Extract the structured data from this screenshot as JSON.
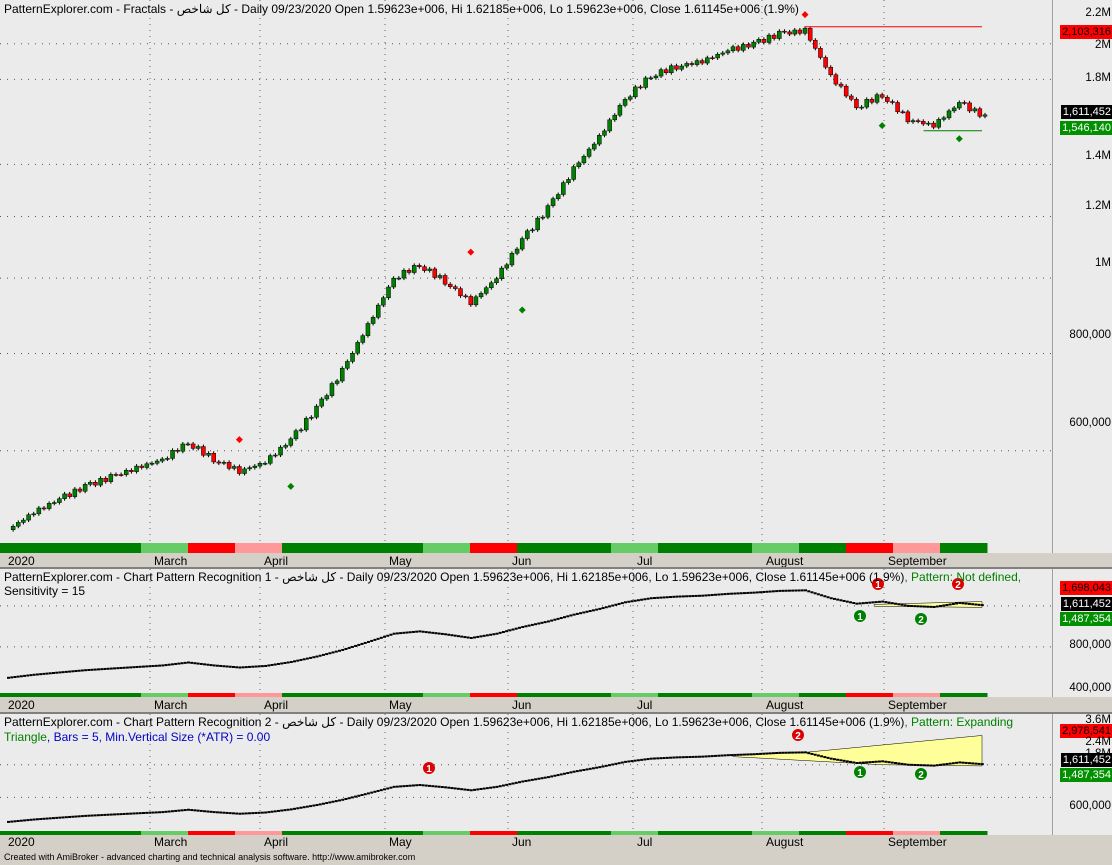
{
  "panes": {
    "main": {
      "title": "PatternExplorer.com - Fractals - كل شاخص - Daily 09/23/2020 Open 1.59623e+006, Hi 1.62185e+006, Lo 1.59623e+006, Close 1.61145e+006 (1.9%)",
      "y_ticks": [
        "2.2M",
        "2M",
        "1.8M",
        "1.4M",
        "1.2M",
        "1M",
        "800,000",
        "600,000"
      ],
      "price_boxes": {
        "resistance": "2,103,316",
        "last": "1,611,452",
        "support": "1,546,140"
      }
    },
    "cpr1": {
      "title": "PatternExplorer.com - Chart Pattern Recognition 1  - كل شاخص - Daily 09/23/2020 Open 1.59623e+006, Hi 1.62185e+006, Lo 1.59623e+006, Close 1.61145e+006 (1.9%)",
      "pattern": ", Pattern: Not defined,",
      "line2": "Sensitivity = 15",
      "y_ticks": [
        "800,000",
        "400,000"
      ],
      "price_boxes": {
        "upper": "1,698,043",
        "last": "1,611,452",
        "lower": "1,487,354"
      }
    },
    "cpr2": {
      "title": "PatternExplorer.com - Chart Pattern Recognition 2 - كل شاخص - Daily 09/23/2020 Open 1.59623e+006, Hi 1.62185e+006, Lo 1.59623e+006, Close 1.61145e+006 (1.9%)",
      "pattern": ", Pattern: Expanding",
      "line2a": "Triangle",
      "line2b": ", Bars = 5, Min.Vertical Size (*ATR) = 0.00",
      "y_ticks": [
        "3.6M",
        "2.4M",
        "1.8M",
        "600,000"
      ],
      "price_boxes": {
        "upper": "2,978,541",
        "last": "1,611,452",
        "lower": "1,487,354"
      }
    }
  },
  "x_labels": [
    "2020",
    "March",
    "April",
    "May",
    "Jun",
    "Jul",
    "August",
    "September"
  ],
  "footer": "Created with AmiBroker - advanced charting and technical analysis software. http://www.amibroker.com",
  "pattern_markers": [
    "1",
    "2"
  ],
  "colors": {
    "up_candle": "#008000",
    "down_candle": "#ff0000",
    "fractal_up": "#ff0000",
    "fractal_down": "#008000",
    "resistance": "#ff0000",
    "support": "#008000",
    "triangle_fill": "#ffff99",
    "bg": "#ebebeb",
    "band_green": "#008000",
    "band_lightgreen": "#66cc66",
    "band_red": "#ff0000",
    "band_pink": "#ff9999"
  },
  "chart_data": {
    "type": "line",
    "title": "",
    "xlabel": "",
    "ylabel": "",
    "y_scale": "log",
    "ylim": [
      450000,
      2250000
    ],
    "x": [
      "01-02",
      "01-09",
      "01-16",
      "01-23",
      "01-30",
      "02-06",
      "02-13",
      "02-20",
      "02-27",
      "03-05",
      "03-12",
      "03-19",
      "03-26",
      "04-02",
      "04-09",
      "04-16",
      "04-23",
      "04-30",
      "05-07",
      "05-14",
      "05-21",
      "05-28",
      "06-04",
      "06-11",
      "06-18",
      "06-25",
      "07-02",
      "07-09",
      "07-16",
      "07-23",
      "07-30",
      "08-06",
      "08-13",
      "08-20",
      "08-27",
      "09-03",
      "09-10",
      "09-17",
      "09-23"
    ],
    "series": [
      {
        "values": [
          475000,
          500000,
          520000,
          540000,
          555000,
          570000,
          585000,
          615000,
          585000,
          565000,
          580000,
          620000,
          680000,
          760000,
          870000,
          1000000,
          1040000,
          990000,
          930000,
          1000000,
          1120000,
          1230000,
          1380000,
          1520000,
          1700000,
          1820000,
          1870000,
          1900000,
          1960000,
          2000000,
          2060000,
          2080000,
          1820000,
          1660000,
          1720000,
          1600000,
          1570000,
          1680000,
          1611452
        ]
      }
    ],
    "fractals_up": [
      {
        "x": "03-05",
        "y": 620000
      },
      {
        "x": "05-07",
        "y": 1080000
      },
      {
        "x": "08-06",
        "y": 2180000
      }
    ],
    "fractals_down": [
      {
        "x": "03-19",
        "y": 540000
      },
      {
        "x": "05-21",
        "y": 910000
      },
      {
        "x": "08-27",
        "y": 1570000
      },
      {
        "x": "09-17",
        "y": 1510000
      }
    ],
    "levels": {
      "resistance": 2103316,
      "support": 1546140,
      "last": 1611452
    }
  }
}
